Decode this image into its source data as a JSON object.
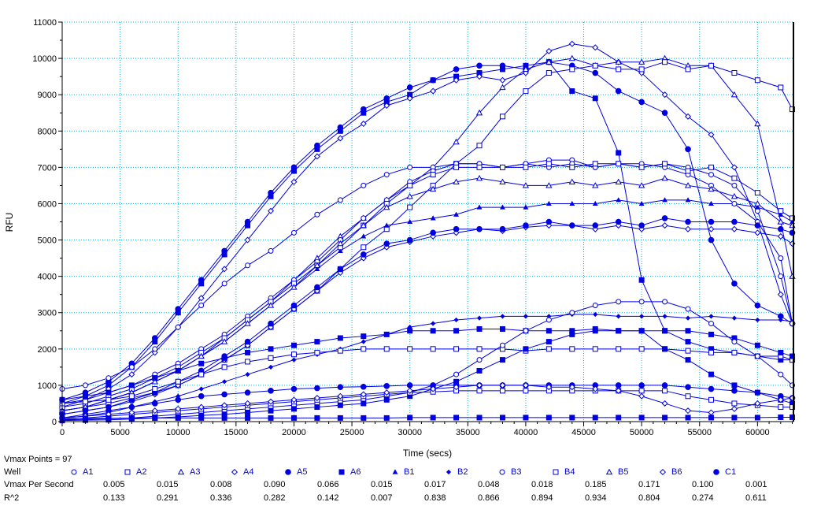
{
  "chart_data": {
    "type": "line",
    "xlabel": "Time (secs)",
    "ylabel": "RFU",
    "xlim": [
      0,
      63100
    ],
    "ylim": [
      0,
      11000
    ],
    "xticks": [
      0,
      5000,
      10000,
      15000,
      20000,
      25000,
      30000,
      35000,
      40000,
      45000,
      50000,
      55000,
      60000
    ],
    "yticks": [
      0,
      1000,
      2000,
      3000,
      4000,
      5000,
      6000,
      7000,
      8000,
      9000,
      10000,
      11000
    ],
    "grid": true,
    "line_color": "#0000e0",
    "grid_color": "#00b4e6",
    "x": [
      0,
      2000,
      4000,
      6000,
      8000,
      10000,
      12000,
      14000,
      16000,
      18000,
      20000,
      22000,
      24000,
      26000,
      28000,
      30000,
      32000,
      34000,
      36000,
      38000,
      40000,
      42000,
      44000,
      46000,
      48000,
      50000,
      52000,
      54000,
      56000,
      58000,
      60000,
      62000,
      63000
    ],
    "series": [
      {
        "name": "A5",
        "marker": "circle-filled",
        "values": [
          600,
          800,
          1100,
          1600,
          2300,
          3100,
          3900,
          4700,
          5500,
          6300,
          7000,
          7600,
          8100,
          8600,
          8900,
          9200,
          9400,
          9700,
          9800,
          9800,
          9700,
          9900,
          9800,
          9600,
          9100,
          8800,
          8500,
          7500,
          5000,
          3800,
          3200,
          2900,
          2700
        ]
      },
      {
        "name": "A6",
        "marker": "square-filled",
        "values": [
          500,
          700,
          1000,
          1500,
          2200,
          3000,
          3800,
          4600,
          5400,
          6200,
          6900,
          7500,
          8000,
          8500,
          8800,
          9000,
          9400,
          9500,
          9600,
          9700,
          9800,
          9900,
          9100,
          8900,
          7400,
          3900,
          2500,
          2200,
          2000,
          1900,
          1800,
          1700,
          1700
        ]
      },
      {
        "name": "A4",
        "marker": "diamond",
        "values": [
          400,
          600,
          900,
          1300,
          1900,
          2600,
          3400,
          4200,
          5000,
          5800,
          6600,
          7300,
          7800,
          8200,
          8700,
          8900,
          9100,
          9400,
          9500,
          9400,
          9600,
          10200,
          10400,
          10300,
          9900,
          9600,
          9000,
          8400,
          7900,
          7000,
          5500,
          3500,
          2700
        ]
      },
      {
        "name": "A3",
        "marker": "triangle",
        "values": [
          300,
          400,
          600,
          800,
          1100,
          1400,
          1800,
          2300,
          2800,
          3300,
          3900,
          4500,
          5100,
          5600,
          6100,
          6500,
          7000,
          7700,
          8500,
          9200,
          9700,
          9900,
          10000,
          9800,
          9900,
          9900,
          10000,
          9800,
          9800,
          9000,
          8200,
          5500,
          4000
        ]
      },
      {
        "name": "A2",
        "marker": "square",
        "values": [
          300,
          400,
          500,
          650,
          800,
          1000,
          1300,
          1700,
          2100,
          2600,
          3100,
          3600,
          4200,
          4800,
          5300,
          5900,
          6500,
          7100,
          7600,
          8400,
          9100,
          9600,
          9700,
          9800,
          9700,
          9700,
          9900,
          9700,
          9800,
          9600,
          9400,
          9200,
          8600
        ]
      },
      {
        "name": "A1",
        "marker": "circle",
        "values": [
          900,
          1000,
          1200,
          1500,
          2000,
          2600,
          3200,
          3800,
          4300,
          4700,
          5200,
          5700,
          6100,
          6500,
          6800,
          7000,
          7000,
          7100,
          7100,
          7000,
          7100,
          7200,
          7200,
          7000,
          7100,
          7000,
          7100,
          7000,
          6800,
          6500,
          5800,
          4000,
          2700
        ]
      },
      {
        "name": "B1",
        "marker": "triangle-filled",
        "values": [
          300,
          400,
          600,
          800,
          1100,
          1400,
          1800,
          2200,
          2700,
          3200,
          3700,
          4200,
          4700,
          5100,
          5400,
          5500,
          5600,
          5700,
          5900,
          5900,
          5900,
          6000,
          6000,
          6000,
          6100,
          6000,
          6100,
          6100,
          6000,
          6000,
          5900,
          5700,
          5500
        ]
      },
      {
        "name": "B2",
        "marker": "diamond-filled",
        "values": [
          100,
          150,
          250,
          400,
          550,
          700,
          900,
          1100,
          1300,
          1500,
          1700,
          1850,
          2000,
          2200,
          2400,
          2600,
          2700,
          2800,
          2850,
          2900,
          2900,
          2900,
          2950,
          2950,
          2900,
          2900,
          2900,
          2850,
          2900,
          2850,
          2800,
          2800,
          2750
        ]
      },
      {
        "name": "B3",
        "marker": "circle",
        "values": [
          500,
          600,
          800,
          1000,
          1300,
          1600,
          2000,
          2400,
          2900,
          3400,
          3900,
          4400,
          5000,
          5600,
          6100,
          6600,
          6900,
          7100,
          7100,
          7000,
          7100,
          7000,
          7100,
          7000,
          7100,
          7100,
          7000,
          6800,
          6500,
          6000,
          5500,
          4500,
          2700
        ]
      },
      {
        "name": "B4",
        "marker": "square",
        "values": [
          400,
          500,
          700,
          900,
          1200,
          1500,
          1900,
          2300,
          2800,
          3300,
          3800,
          4300,
          4800,
          5400,
          6000,
          6500,
          6800,
          7000,
          7000,
          7000,
          7000,
          7100,
          7000,
          7100,
          7100,
          7000,
          7100,
          6900,
          7000,
          6700,
          6300,
          5800,
          5600
        ]
      },
      {
        "name": "B5",
        "marker": "triangle",
        "values": [
          300,
          400,
          600,
          800,
          1100,
          1400,
          1800,
          2200,
          2700,
          3200,
          3700,
          4300,
          4900,
          5400,
          5900,
          6200,
          6400,
          6600,
          6700,
          6600,
          6500,
          6500,
          6600,
          6500,
          6600,
          6500,
          6700,
          6500,
          6400,
          6200,
          6000,
          5500,
          5400
        ]
      },
      {
        "name": "B6",
        "marker": "diamond",
        "values": [
          200,
          300,
          400,
          550,
          750,
          1000,
          1300,
          1700,
          2100,
          2600,
          3100,
          3600,
          4100,
          4500,
          4800,
          4950,
          5100,
          5200,
          5300,
          5250,
          5350,
          5400,
          5400,
          5300,
          5400,
          5300,
          5400,
          5300,
          5300,
          5300,
          5200,
          5100,
          4900
        ]
      },
      {
        "name": "C1",
        "marker": "circle-filled",
        "values": [
          200,
          300,
          400,
          600,
          800,
          1100,
          1400,
          1800,
          2200,
          2700,
          3200,
          3700,
          4200,
          4600,
          4900,
          5000,
          5200,
          5300,
          5300,
          5300,
          5400,
          5500,
          5400,
          5400,
          5500,
          5400,
          5600,
          5500,
          5500,
          5500,
          5400,
          5300,
          5200
        ]
      },
      {
        "marker": "square",
        "values": [
          500,
          550,
          600,
          700,
          900,
          1100,
          1300,
          1500,
          1650,
          1750,
          1850,
          1900,
          1950,
          2000,
          2000,
          2000,
          2000,
          2000,
          2000,
          2000,
          1950,
          2000,
          2000,
          2000,
          2000,
          2000,
          2000,
          1950,
          1900,
          1900,
          1800,
          1800,
          1700
        ]
      },
      {
        "marker": "square-filled",
        "values": [
          600,
          700,
          800,
          1000,
          1200,
          1400,
          1600,
          1750,
          1900,
          2000,
          2100,
          2200,
          2300,
          2350,
          2400,
          2500,
          2500,
          2500,
          2550,
          2550,
          2500,
          2500,
          2500,
          2550,
          2500,
          2500,
          2500,
          2500,
          2400,
          2300,
          2100,
          1900,
          1800
        ]
      },
      {
        "marker": "circle",
        "values": [
          50,
          60,
          80,
          100,
          150,
          200,
          250,
          300,
          350,
          400,
          450,
          500,
          550,
          600,
          700,
          800,
          1000,
          1300,
          1700,
          2100,
          2500,
          2800,
          3000,
          3200,
          3300,
          3300,
          3300,
          3100,
          2700,
          2200,
          1800,
          1300,
          1000
        ]
      },
      {
        "marker": "square-filled",
        "values": [
          30,
          40,
          50,
          70,
          100,
          130,
          170,
          200,
          250,
          300,
          350,
          400,
          450,
          500,
          600,
          700,
          900,
          1100,
          1400,
          1700,
          2000,
          2200,
          2400,
          2500,
          2500,
          2500,
          2000,
          1700,
          1300,
          1000,
          800,
          600,
          500
        ]
      },
      {
        "marker": "circle-filled",
        "values": [
          100,
          200,
          300,
          400,
          500,
          600,
          700,
          750,
          800,
          850,
          900,
          920,
          950,
          960,
          980,
          1000,
          1000,
          1000,
          1000,
          1000,
          1000,
          1000,
          1000,
          1000,
          1000,
          1000,
          1000,
          950,
          900,
          850,
          800,
          700,
          650
        ]
      },
      {
        "marker": "square",
        "values": [
          50,
          100,
          150,
          200,
          250,
          300,
          350,
          400,
          450,
          500,
          550,
          600,
          650,
          700,
          750,
          800,
          820,
          850,
          850,
          850,
          850,
          850,
          850,
          850,
          850,
          850,
          850,
          700,
          600,
          500,
          450,
          400,
          400
        ]
      },
      {
        "marker": "diamond",
        "values": [
          100,
          150,
          200,
          250,
          300,
          350,
          400,
          450,
          500,
          550,
          600,
          650,
          700,
          750,
          800,
          850,
          900,
          950,
          1000,
          1000,
          1000,
          950,
          950,
          900,
          850,
          700,
          500,
          300,
          250,
          350,
          500,
          600,
          650
        ]
      },
      {
        "marker": "square-filled",
        "values": [
          80,
          90,
          90,
          100,
          100,
          100,
          100,
          100,
          100,
          100,
          100,
          100,
          100,
          100,
          100,
          110,
          110,
          110,
          110,
          110,
          110,
          110,
          110,
          110,
          110,
          110,
          110,
          110,
          110,
          110,
          110,
          120,
          120
        ]
      }
    ]
  },
  "table": {
    "vmax_points": "Vmax Points = 97",
    "well_label": "Well",
    "vmax_label": "Vmax Per Second",
    "r2_label": "R^2",
    "wells": [
      {
        "name": "A1",
        "marker": "circle",
        "vmax": "0.005",
        "r2": "0.133"
      },
      {
        "name": "A2",
        "marker": "square",
        "vmax": "0.015",
        "r2": "0.291"
      },
      {
        "name": "A3",
        "marker": "triangle",
        "vmax": "0.008",
        "r2": "0.336"
      },
      {
        "name": "A4",
        "marker": "diamond",
        "vmax": "0.090",
        "r2": "0.282"
      },
      {
        "name": "A5",
        "marker": "circle-filled",
        "vmax": "0.066",
        "r2": "0.142"
      },
      {
        "name": "A6",
        "marker": "square-filled",
        "vmax": "0.015",
        "r2": "0.007"
      },
      {
        "name": "B1",
        "marker": "triangle-filled",
        "vmax": "0.017",
        "r2": "0.838"
      },
      {
        "name": "B2",
        "marker": "diamond-filled",
        "vmax": "0.048",
        "r2": "0.866"
      },
      {
        "name": "B3",
        "marker": "circle",
        "vmax": "0.018",
        "r2": "0.894"
      },
      {
        "name": "B4",
        "marker": "square",
        "vmax": "0.185",
        "r2": "0.934"
      },
      {
        "name": "B5",
        "marker": "triangle",
        "vmax": "0.171",
        "r2": "0.804"
      },
      {
        "name": "B6",
        "marker": "diamond",
        "vmax": "0.100",
        "r2": "0.274"
      },
      {
        "name": "C1",
        "marker": "circle-filled",
        "vmax": "0.001",
        "r2": "0.611"
      }
    ]
  }
}
